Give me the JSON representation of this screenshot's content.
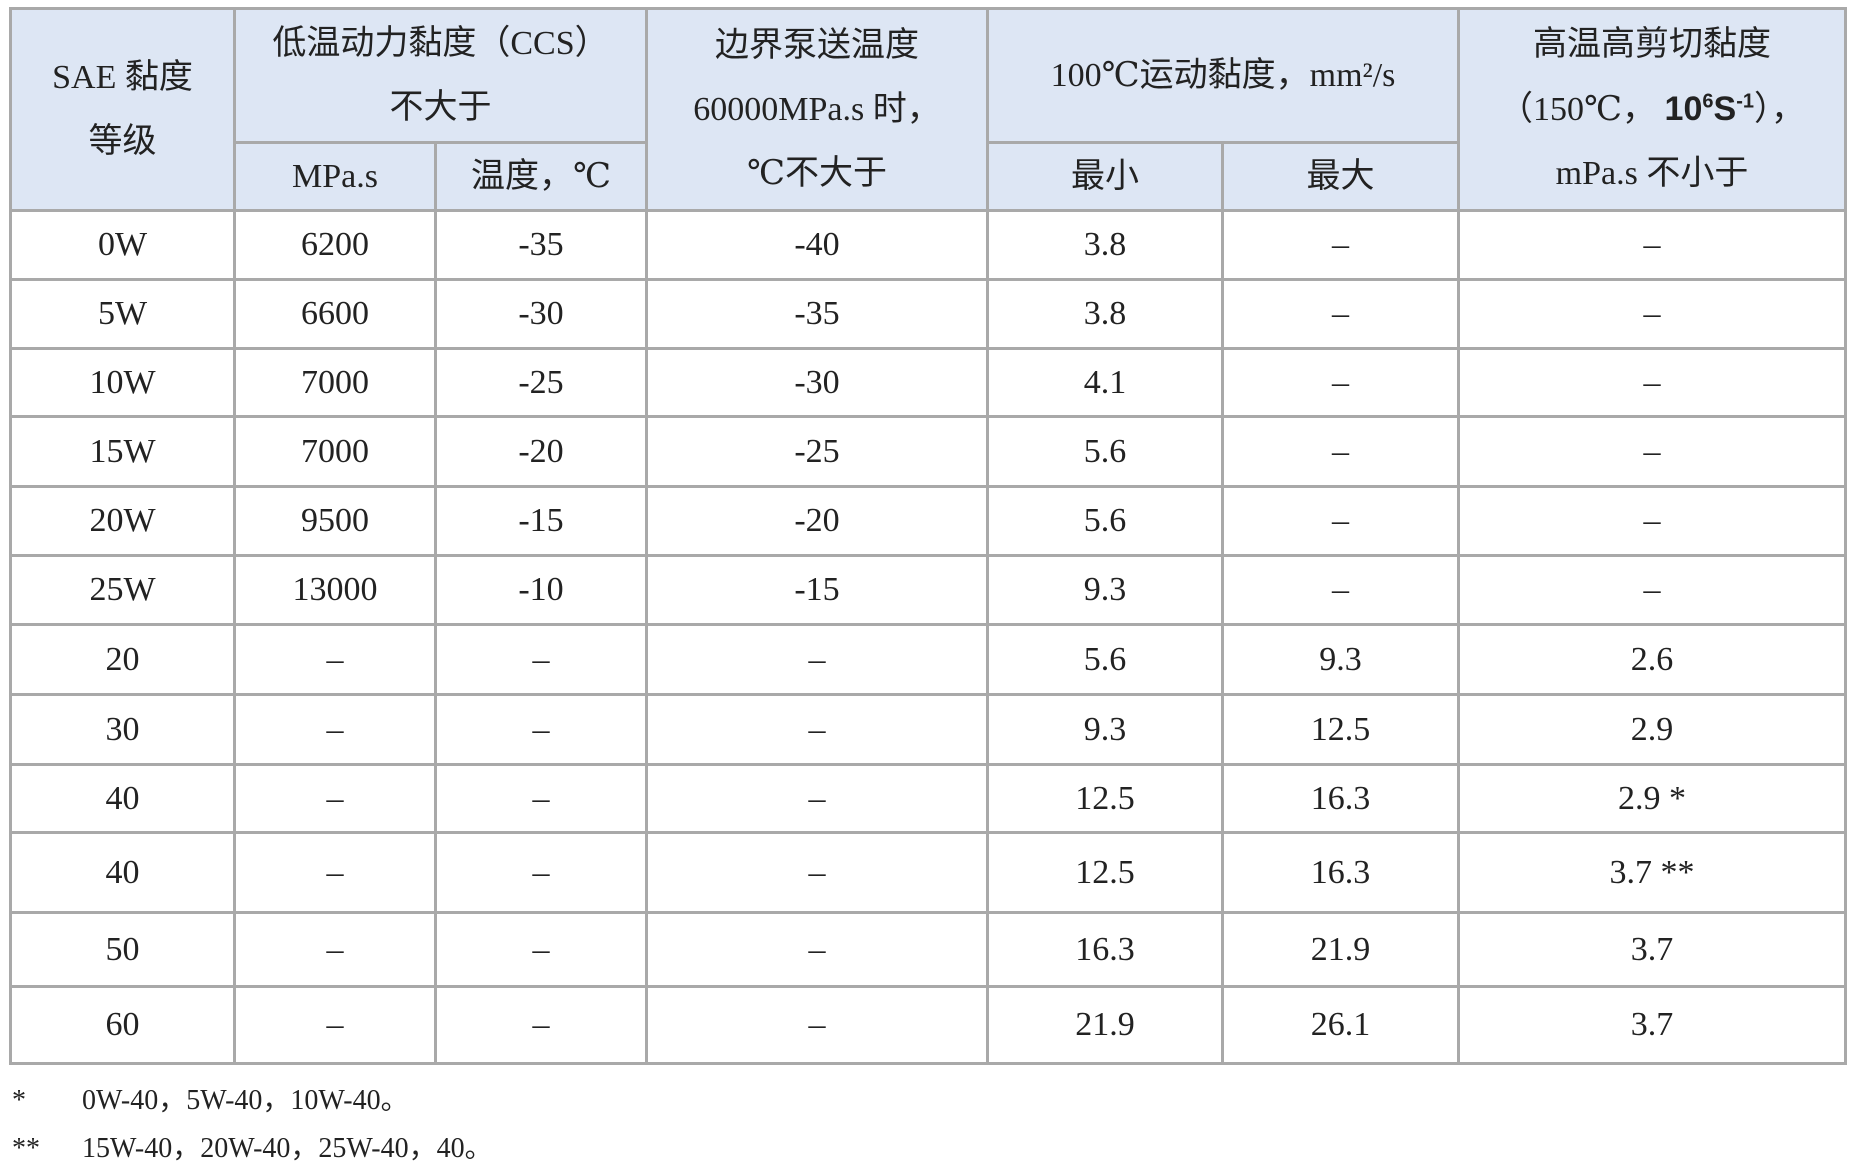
{
  "table": {
    "header": {
      "grade": [
        "SAE 黏度",
        "等级"
      ],
      "ccs": [
        "低温动力黏度（CCS）",
        "不大于"
      ],
      "ccs_sub": [
        "MPa.s",
        "温度，℃"
      ],
      "pump": [
        "边界泵送温度",
        "60000MPa.s 时，",
        "℃不大于"
      ],
      "kin": "100℃运动黏度，mm²/s",
      "kin_sub": [
        "最小",
        "最大"
      ],
      "hths": {
        "line1": "高温高剪切黏度",
        "pre": "（150℃，",
        "base": "10",
        "exp": "6",
        "unit": "S",
        "unit_exp": "-1",
        "post": "），",
        "line3": "mPa.s 不小于"
      }
    },
    "rows": [
      [
        "0W",
        "6200",
        "-35",
        "-40",
        "3.8",
        "–",
        "–"
      ],
      [
        "5W",
        "6600",
        "-30",
        "-35",
        "3.8",
        "–",
        "–"
      ],
      [
        "10W",
        "7000",
        "-25",
        "-30",
        "4.1",
        "–",
        "–"
      ],
      [
        "15W",
        "7000",
        "-20",
        "-25",
        "5.6",
        "–",
        "–"
      ],
      [
        "20W",
        "9500",
        "-15",
        "-20",
        "5.6",
        "–",
        "–"
      ],
      [
        "25W",
        "13000",
        "-10",
        "-15",
        "9.3",
        "–",
        "–"
      ],
      [
        "20",
        "–",
        "–",
        "–",
        "5.6",
        "9.3",
        "2.6"
      ],
      [
        "30",
        "–",
        "–",
        "–",
        "9.3",
        "12.5",
        "2.9"
      ],
      [
        "40",
        "–",
        "–",
        "–",
        "12.5",
        "16.3",
        "2.9 *"
      ],
      [
        "40",
        "–",
        "–",
        "–",
        "12.5",
        "16.3",
        "3.7 **"
      ],
      [
        "50",
        "–",
        "–",
        "–",
        "16.3",
        "21.9",
        "3.7"
      ],
      [
        "60",
        "–",
        "–",
        "–",
        "21.9",
        "26.1",
        "3.7"
      ]
    ]
  },
  "footnotes": [
    [
      "*",
      "0W-40，5W-40，10W-40。"
    ],
    [
      "**",
      "15W-40，20W-40，25W-40，40。"
    ]
  ]
}
